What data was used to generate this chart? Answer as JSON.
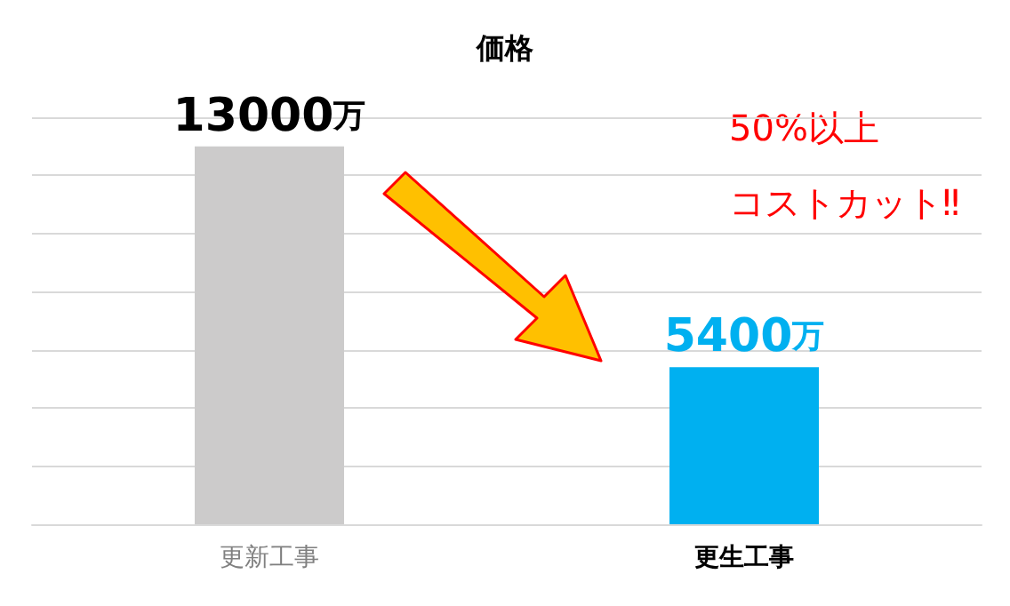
{
  "chart_data": {
    "type": "bar",
    "title": "価格",
    "categories": [
      "更新工事",
      "更生工事"
    ],
    "values": [
      13000,
      5400
    ],
    "colors": [
      "#cccbcb",
      "#00b0f0"
    ],
    "value_labels": [
      "13000万",
      "5400万"
    ],
    "ylim": [
      0,
      14000
    ],
    "yticks": [
      0,
      2000,
      4000,
      6000,
      8000,
      10000,
      12000,
      14000
    ],
    "tick_labels": "x",
    "grid": "y",
    "annotations": [
      "50%以上",
      "コストカット‼"
    ]
  }
}
